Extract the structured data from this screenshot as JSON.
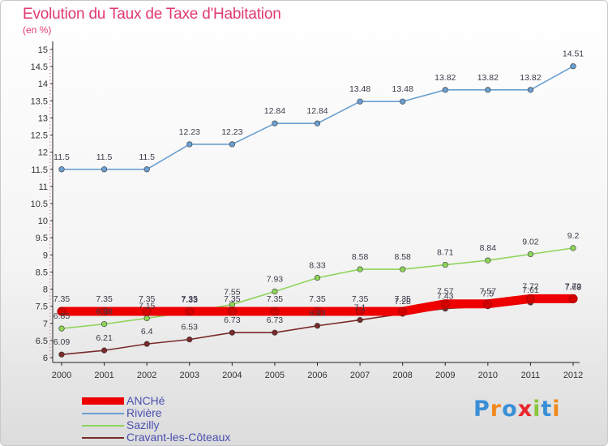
{
  "header": {
    "title": "Evolution du Taux de Taxe d'Habitation",
    "unit": "(en %)"
  },
  "logo": {
    "text": "Proxiti",
    "colors": [
      "#3a8fd6",
      "#f08a1c",
      "#3a8fd6",
      "#e8262b",
      "#8cc63f",
      "#3a8fd6",
      "#f08a1c"
    ]
  },
  "chart_data": {
    "type": "line",
    "title": "Evolution du Taux de Taxe d'Habitation",
    "ylabel": "(en %)",
    "xlabel": "",
    "ylim": [
      6,
      15
    ],
    "yticks": [
      "6",
      "6.5",
      "7",
      "7.5",
      "8",
      "8.5",
      "9",
      "9.5",
      "10",
      "10.5",
      "11",
      "11.5",
      "12",
      "12.5",
      "13",
      "13.5",
      "14",
      "14.5",
      "15"
    ],
    "x": [
      "2000",
      "2001",
      "2002",
      "2003",
      "2004",
      "2005",
      "2006",
      "2007",
      "2008",
      "2009",
      "2010",
      "2011",
      "2012"
    ],
    "series": [
      {
        "name": "ANCHé",
        "color": "#ee0000",
        "values": [
          7.35,
          7.35,
          7.35,
          7.35,
          7.35,
          7.35,
          7.35,
          7.35,
          7.35,
          7.57,
          7.57,
          7.72,
          7.72
        ],
        "labels": [
          "7.35",
          "7.35",
          "7.35",
          "7.35",
          "7.35",
          "7.35",
          "7.35",
          "7.35",
          "7.35",
          "7.57",
          "7.57",
          "7.72",
          "7.72"
        ]
      },
      {
        "name": "Rivière",
        "color": "#6a9fd0",
        "values": [
          11.5,
          11.5,
          11.5,
          12.23,
          12.23,
          12.84,
          12.84,
          13.48,
          13.48,
          13.82,
          13.82,
          13.82,
          14.51
        ],
        "labels": [
          "11.5",
          "11.5",
          "11.5",
          "12.23",
          "12.23",
          "12.84",
          "12.84",
          "13.48",
          "13.48",
          "13.82",
          "13.82",
          "13.82",
          "14.51"
        ]
      },
      {
        "name": "Sazilly",
        "color": "#8ed45a",
        "values": [
          6.85,
          6.98,
          7.15,
          7.33,
          7.55,
          7.93,
          8.33,
          8.58,
          8.58,
          8.71,
          8.84,
          9.02,
          9.2
        ],
        "labels": [
          "6.85",
          "6.98",
          "7.15",
          "7.33",
          "7.55",
          "7.93",
          "8.33",
          "8.58",
          "8.58",
          "8.71",
          "8.84",
          "9.02",
          "9.2"
        ]
      },
      {
        "name": "Cravant-les-Côteaux",
        "color": "#7a2a2a",
        "values": [
          6.09,
          6.21,
          6.4,
          6.53,
          6.73,
          6.73,
          6.93,
          7.1,
          7.28,
          7.43,
          7.5,
          7.61,
          7.69
        ],
        "labels": [
          "6.09",
          "6.21",
          "6.4",
          "6.53",
          "6.73",
          "6.73",
          "6.93",
          "7.1",
          "7.28",
          "7.43",
          "7.5",
          "7.61",
          "7.69"
        ]
      }
    ]
  }
}
